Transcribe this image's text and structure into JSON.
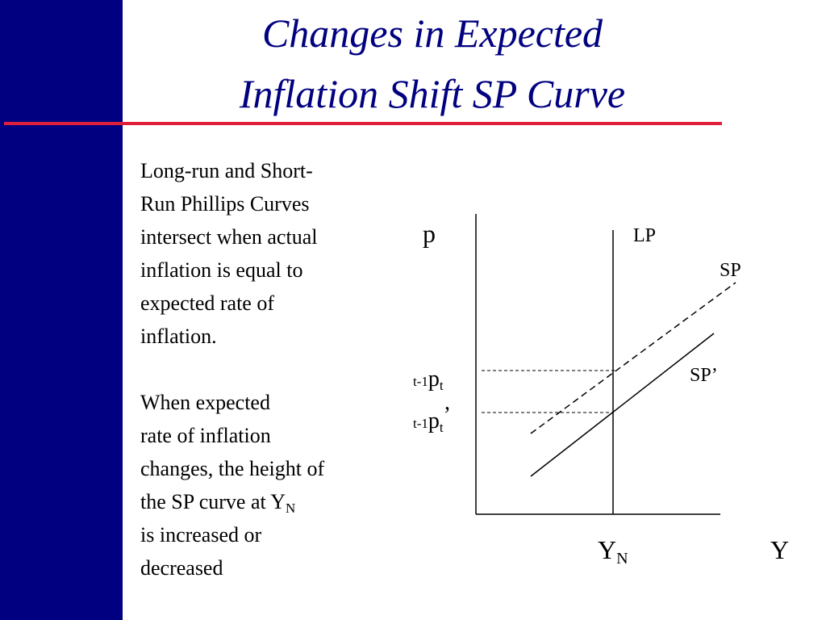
{
  "title": {
    "lines": [
      "Changes in Expected",
      "Inflation Shift SP Curve"
    ]
  },
  "text": {
    "paragraph_1": [
      "Long-run and Short-",
      "Run Phillips Curves",
      "intersect when actual",
      "inflation is equal to",
      "expected rate of",
      "inflation."
    ],
    "paragraph_2": [
      "When expected",
      "rate of inflation",
      "changes, the height of",
      {
        "text": "the SP curve at Y",
        "sub": "N"
      },
      "is increased or",
      "decreased"
    ]
  },
  "diagram": {
    "y_axis_label": "p",
    "x_axis_label": "Y",
    "curves": {
      "lp": "LP",
      "sp": "SP",
      "sp_prime": "SP’"
    },
    "levels": [
      {
        "pre": "t-1",
        "main": "p",
        "sub": "t"
      },
      {
        "pre": "t-1",
        "main": "p",
        "sub": "t",
        "suffix": "’"
      }
    ],
    "natural_output": {
      "main": "Y",
      "sub": "N"
    }
  }
}
